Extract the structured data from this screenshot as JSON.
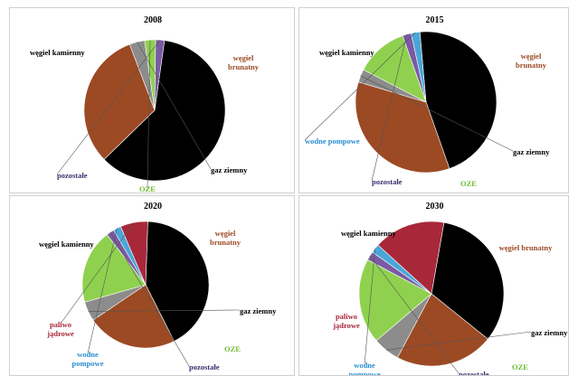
{
  "colors": {
    "wegiel_kamienny": "#000000",
    "wegiel_brunatny": "#9c4a24",
    "gaz_ziemny": "#8c8c8c",
    "oze": "#8fd14f",
    "pozostale": "#7a5aa3",
    "wodne_pompowe": "#4aa6d8",
    "paliwo_jadrowe": "#a8283a"
  },
  "chart_data": [
    {
      "type": "pie",
      "title": "2008",
      "slices": [
        {
          "label": "węgiel kamienny",
          "value": 60.5,
          "color": "#000000",
          "text_color": "#000000"
        },
        {
          "label": "węgiel brunatny",
          "value": 31.5,
          "color": "#9c4a24",
          "text_color": "#9c4a24"
        },
        {
          "label": "gaz ziemny",
          "value": 3.5,
          "color": "#8c8c8c",
          "text_color": "#000000"
        },
        {
          "label": "OZE",
          "value": 2.5,
          "color": "#8fd14f",
          "text_color": "#6dbb2e"
        },
        {
          "label": "pozostałe",
          "value": 2.0,
          "color": "#7a5aa3",
          "text_color": "#3b2b6e"
        }
      ]
    },
    {
      "type": "pie",
      "title": "2015",
      "slices": [
        {
          "label": "węgiel kamienny",
          "value": 46.0,
          "color": "#000000",
          "text_color": "#000000"
        },
        {
          "label": "węgiel brunatny",
          "value": 35.0,
          "color": "#9c4a24",
          "text_color": "#9c4a24"
        },
        {
          "label": "gaz ziemny",
          "value": 3.0,
          "color": "#8c8c8c",
          "text_color": "#000000"
        },
        {
          "label": "OZE",
          "value": 12.0,
          "color": "#8fd14f",
          "text_color": "#6dbb2e"
        },
        {
          "label": "pozostałe",
          "value": 2.0,
          "color": "#7a5aa3",
          "text_color": "#3b2b6e"
        },
        {
          "label": "wodne pompowe",
          "value": 2.0,
          "color": "#4aa6d8",
          "text_color": "#2a8ed0"
        }
      ]
    },
    {
      "type": "pie",
      "title": "2020",
      "slices": [
        {
          "label": "węgiel kamienny",
          "value": 42.0,
          "color": "#000000",
          "text_color": "#000000"
        },
        {
          "label": "węgiel brunatny",
          "value": 23.0,
          "color": "#9c4a24",
          "text_color": "#9c4a24"
        },
        {
          "label": "gaz ziemny",
          "value": 5.0,
          "color": "#8c8c8c",
          "text_color": "#000000"
        },
        {
          "label": "OZE",
          "value": 19.0,
          "color": "#8fd14f",
          "text_color": "#6dbb2e"
        },
        {
          "label": "pozostałe",
          "value": 2.0,
          "color": "#7a5aa3",
          "text_color": "#3b2b6e"
        },
        {
          "label": "wodne pompowe",
          "value": 2.0,
          "color": "#4aa6d8",
          "text_color": "#2a8ed0"
        },
        {
          "label": "paliwo jądrowe",
          "value": 7.0,
          "color": "#a8283a",
          "text_color": "#a8283a"
        }
      ]
    },
    {
      "type": "pie",
      "title": "2030",
      "slices": [
        {
          "label": "węgiel kamienny",
          "value": 33.0,
          "color": "#000000",
          "text_color": "#000000"
        },
        {
          "label": "węgiel brunatny",
          "value": 22.0,
          "color": "#9c4a24",
          "text_color": "#9c4a24"
        },
        {
          "label": "gaz ziemny",
          "value": 6.0,
          "color": "#8c8c8c",
          "text_color": "#000000"
        },
        {
          "label": "OZE",
          "value": 19.0,
          "color": "#8fd14f",
          "text_color": "#6dbb2e"
        },
        {
          "label": "pozostałe",
          "value": 2.0,
          "color": "#7a5aa3",
          "text_color": "#3b2b6e"
        },
        {
          "label": "wodne pompowe",
          "value": 2.0,
          "color": "#4aa6d8",
          "text_color": "#2a8ed0"
        },
        {
          "label": "paliwo jądrowe",
          "value": 16.0,
          "color": "#a8283a",
          "text_color": "#a8283a"
        }
      ]
    }
  ]
}
